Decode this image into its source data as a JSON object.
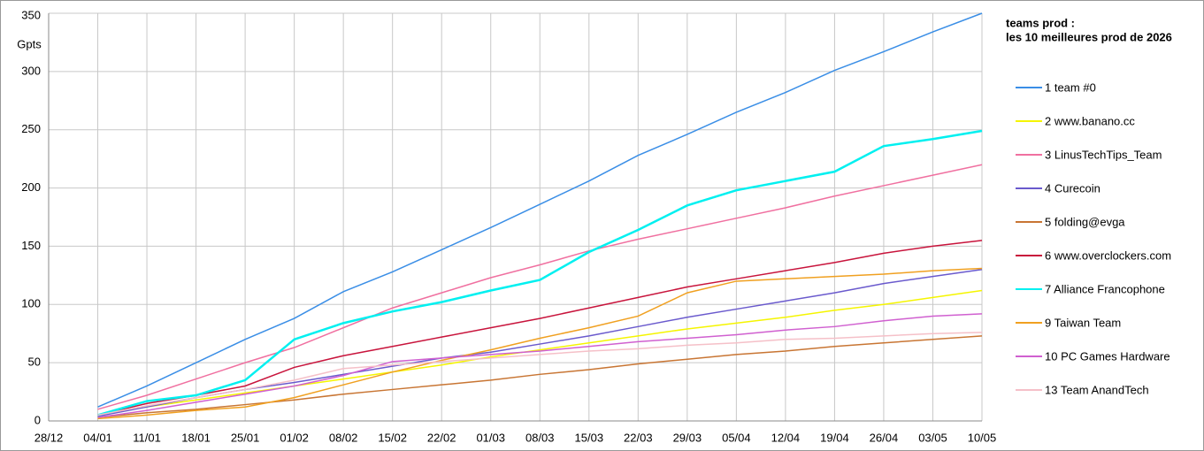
{
  "chart_data": {
    "type": "line",
    "title": "teams prod :",
    "subtitle": "les 10 meilleures prod de 2026",
    "y_label": "Gpts",
    "categories": [
      "28/12",
      "04/01",
      "11/01",
      "18/01",
      "25/01",
      "01/02",
      "08/02",
      "15/02",
      "22/02",
      "01/03",
      "08/03",
      "15/03",
      "22/03",
      "29/03",
      "05/04",
      "12/04",
      "19/04",
      "26/04",
      "03/05",
      "10/05"
    ],
    "ylim": [
      0,
      350
    ],
    "yticks": [
      0,
      50,
      100,
      150,
      200,
      250,
      300,
      350
    ],
    "grid": true,
    "legend": "right",
    "series": [
      {
        "name": "1 team #0",
        "color": "#3a8ee6",
        "values": [
          null,
          12,
          30,
          50,
          70,
          88,
          111,
          128,
          147,
          166,
          186,
          206,
          228,
          246,
          265,
          282,
          301,
          317,
          334,
          350
        ]
      },
      {
        "name": "2 www.banano.cc",
        "color": "#f5f500",
        "values": [
          null,
          5,
          12,
          18,
          24,
          30,
          36,
          42,
          48,
          55,
          61,
          67,
          73,
          79,
          84,
          89,
          95,
          100,
          106,
          112
        ]
      },
      {
        "name": "3 LinusTechTips_Team",
        "color": "#f070a0",
        "values": [
          null,
          10,
          22,
          36,
          50,
          63,
          80,
          97,
          110,
          123,
          134,
          146,
          156,
          165,
          174,
          183,
          193,
          202,
          211,
          220
        ]
      },
      {
        "name": "4 Curecoin",
        "color": "#6a5acd",
        "values": [
          null,
          4,
          12,
          20,
          27,
          33,
          40,
          47,
          54,
          59,
          66,
          73,
          81,
          89,
          96,
          103,
          110,
          118,
          124,
          130
        ]
      },
      {
        "name": "5 folding@evga",
        "color": "#c87533",
        "values": [
          null,
          3,
          7,
          10,
          14,
          18,
          23,
          27,
          31,
          35,
          40,
          44,
          49,
          53,
          57,
          60,
          64,
          67,
          70,
          73
        ]
      },
      {
        "name": "6 www.overclockers.com",
        "color": "#c8143c",
        "values": [
          null,
          5,
          15,
          22,
          30,
          46,
          56,
          64,
          72,
          80,
          88,
          97,
          106,
          115,
          122,
          129,
          136,
          144,
          150,
          155
        ]
      },
      {
        "name": "7 Alliance Francophone",
        "color": "#00f0f0",
        "values": [
          null,
          5,
          17,
          22,
          35,
          70,
          84,
          94,
          102,
          112,
          121,
          145,
          164,
          185,
          198,
          206,
          214,
          236,
          242,
          249
        ]
      },
      {
        "name": "9 Taiwan Team",
        "color": "#f0a020",
        "values": [
          null,
          2,
          5,
          9,
          12,
          20,
          31,
          42,
          52,
          61,
          71,
          80,
          90,
          110,
          120,
          122,
          124,
          126,
          129,
          131
        ]
      },
      {
        "name": "10 PC Games Hardware",
        "color": "#d060d0",
        "values": [
          null,
          3,
          9,
          16,
          23,
          30,
          39,
          51,
          54,
          57,
          60,
          64,
          68,
          71,
          74,
          78,
          81,
          86,
          90,
          92
        ]
      },
      {
        "name": "13 Team AnandTech",
        "color": "#f5c0c8",
        "values": [
          null,
          5,
          13,
          20,
          27,
          35,
          45,
          48,
          51,
          54,
          57,
          60,
          62,
          65,
          67,
          70,
          71,
          73,
          75,
          76
        ]
      }
    ]
  }
}
